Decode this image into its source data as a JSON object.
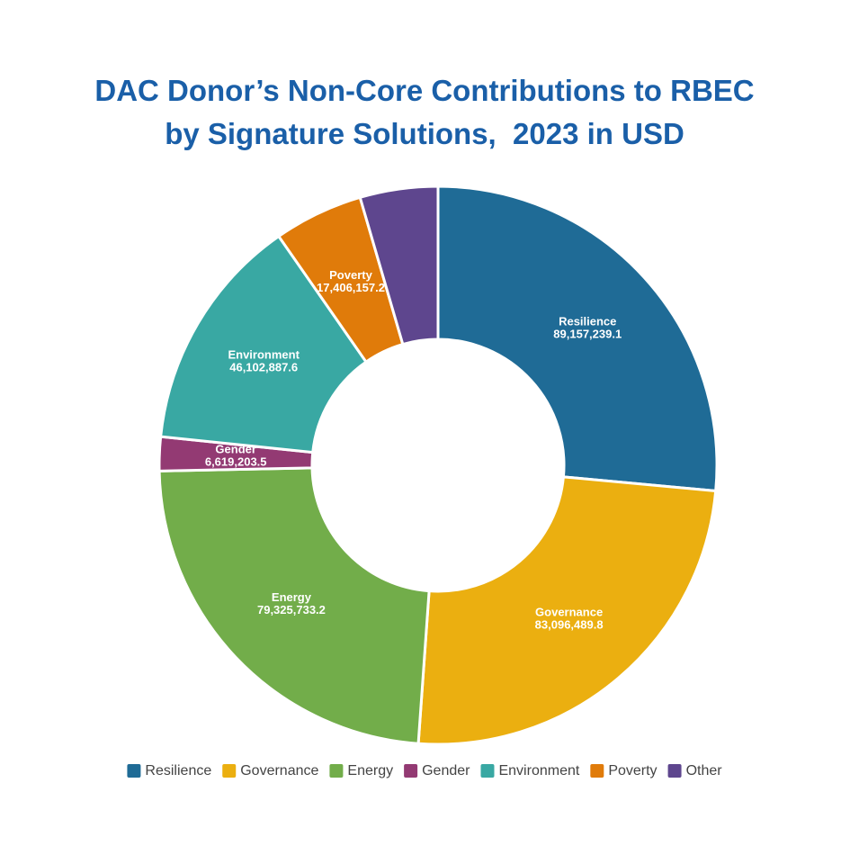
{
  "chart_data": {
    "type": "donut",
    "title": [
      "DAC Donor’s Non-Core Contributions to RBEC",
      "by Signature Solutions,  2023 in USD"
    ],
    "categories": [
      "Resilience",
      "Governance",
      "Energy",
      "Gender",
      "Environment",
      "Poverty",
      "Other"
    ],
    "values": [
      89157239.1,
      83096489.8,
      79325733.2,
      6619203.5,
      46102887.6,
      17406157.2,
      15200000
    ],
    "value_labels": [
      "89,157,239.1",
      "83,096,489.8",
      "79,325,733.2",
      "6,619,203.5",
      "46,102,887.6",
      "17,406,157.2",
      null
    ],
    "colors": [
      "#1f6b96",
      "#ebaf10",
      "#72ad4a",
      "#933a73",
      "#39a8a3",
      "#e07b0a",
      "#5e468e"
    ],
    "legend": "bottom"
  }
}
